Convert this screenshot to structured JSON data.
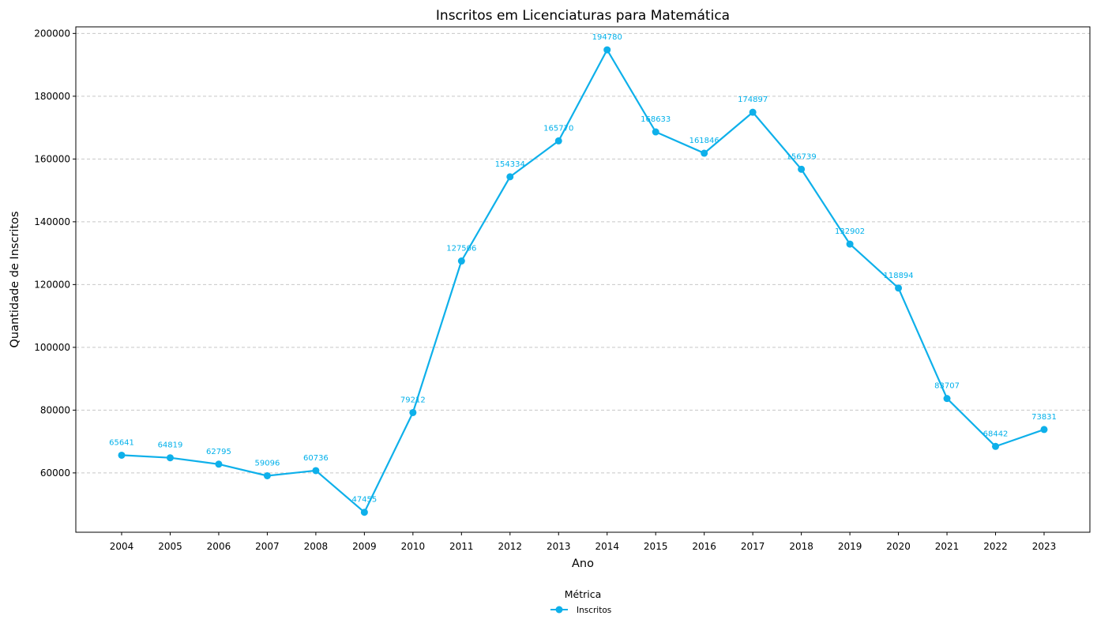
{
  "chart_data": {
    "type": "line",
    "title": "Inscritos em Licenciaturas para Matemática",
    "xlabel": "Ano",
    "ylabel": "Quantidade de Inscritos",
    "x": [
      "2004",
      "2005",
      "2006",
      "2007",
      "2008",
      "2009",
      "2010",
      "2011",
      "2012",
      "2013",
      "2014",
      "2015",
      "2016",
      "2017",
      "2018",
      "2019",
      "2020",
      "2021",
      "2022",
      "2023"
    ],
    "series": [
      {
        "name": "Inscritos",
        "color": "#0eb0ea",
        "values": [
          65641,
          64819,
          62795,
          59096,
          60736,
          47455,
          79212,
          127506,
          154334,
          165770,
          194780,
          168633,
          161846,
          174897,
          156739,
          132902,
          118894,
          83707,
          68442,
          73831
        ]
      }
    ],
    "ylim": [
      41100,
      202100
    ],
    "yticks": [
      60000,
      80000,
      100000,
      120000,
      140000,
      160000,
      180000,
      200000
    ],
    "ytick_labels": [
      "60000",
      "80000",
      "100000",
      "120000",
      "140000",
      "160000",
      "180000",
      "200000"
    ],
    "grid": "y-dashed",
    "legend": {
      "title": "Métrica",
      "placement": "bottom-center"
    }
  }
}
